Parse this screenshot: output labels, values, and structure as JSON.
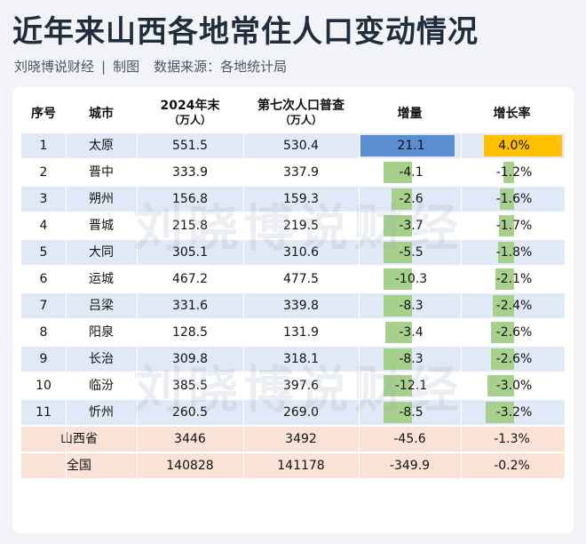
{
  "title": "近年来山西各地常住人口变动情况",
  "subtitle": {
    "author": "刘晓博说财经",
    "sep": "|",
    "made": "制图",
    "source": "数据来源：各地统计局"
  },
  "watermark": "刘晓博说财经",
  "columns": {
    "rank": "序号",
    "city": "城市",
    "y2024": "2024年末",
    "y2024_unit": "（万人）",
    "census7": "第七次人口普查",
    "census7_unit": "（万人）",
    "increase": "增量",
    "rate": "增长率"
  },
  "colors": {
    "neg_bar": "#a8d08d",
    "pos_increase_bar": "#5b8ed0",
    "pos_rate_bar": "#ffc000",
    "alt_row": "#dfeaf6",
    "summary_row": "#fbe2d6"
  },
  "rows": [
    {
      "rank": "1",
      "city": "太原",
      "y2024": "551.5",
      "census7": "530.4",
      "increase": "21.1",
      "rate": "4.0%",
      "inc_num": 21.1,
      "rate_num": 4.0
    },
    {
      "rank": "2",
      "city": "晋中",
      "y2024": "333.9",
      "census7": "337.9",
      "increase": "-4.1",
      "rate": "-1.2%",
      "inc_num": -4.1,
      "rate_num": -1.2
    },
    {
      "rank": "3",
      "city": "朔州",
      "y2024": "156.8",
      "census7": "159.3",
      "increase": "-2.6",
      "rate": "-1.6%",
      "inc_num": -2.6,
      "rate_num": -1.6
    },
    {
      "rank": "4",
      "city": "晋城",
      "y2024": "215.8",
      "census7": "219.5",
      "increase": "-3.7",
      "rate": "-1.7%",
      "inc_num": -3.7,
      "rate_num": -1.7
    },
    {
      "rank": "5",
      "city": "大同",
      "y2024": "305.1",
      "census7": "310.6",
      "increase": "-5.5",
      "rate": "-1.8%",
      "inc_num": -5.5,
      "rate_num": -1.8
    },
    {
      "rank": "6",
      "city": "运城",
      "y2024": "467.2",
      "census7": "477.5",
      "increase": "-10.3",
      "rate": "-2.1%",
      "inc_num": -10.3,
      "rate_num": -2.1
    },
    {
      "rank": "7",
      "city": "吕梁",
      "y2024": "331.6",
      "census7": "339.8",
      "increase": "-8.3",
      "rate": "-2.4%",
      "inc_num": -8.3,
      "rate_num": -2.4
    },
    {
      "rank": "8",
      "city": "阳泉",
      "y2024": "128.5",
      "census7": "131.9",
      "increase": "-3.4",
      "rate": "-2.6%",
      "inc_num": -3.4,
      "rate_num": -2.6
    },
    {
      "rank": "9",
      "city": "长治",
      "y2024": "309.8",
      "census7": "318.1",
      "increase": "-8.3",
      "rate": "-2.6%",
      "inc_num": -8.3,
      "rate_num": -2.6
    },
    {
      "rank": "10",
      "city": "临汾",
      "y2024": "385.5",
      "census7": "397.6",
      "increase": "-12.1",
      "rate": "-3.0%",
      "inc_num": -12.1,
      "rate_num": -3.0
    },
    {
      "rank": "11",
      "city": "忻州",
      "y2024": "260.5",
      "census7": "269.0",
      "increase": "-8.5",
      "rate": "-3.2%",
      "inc_num": -8.5,
      "rate_num": -3.2
    }
  ],
  "summary": [
    {
      "name": "山西省",
      "y2024": "3446",
      "census7": "3492",
      "increase": "-45.6",
      "rate": "-1.3%"
    },
    {
      "name": "全国",
      "y2024": "140828",
      "census7": "141178",
      "increase": "-349.9",
      "rate": "-0.2%"
    }
  ]
}
